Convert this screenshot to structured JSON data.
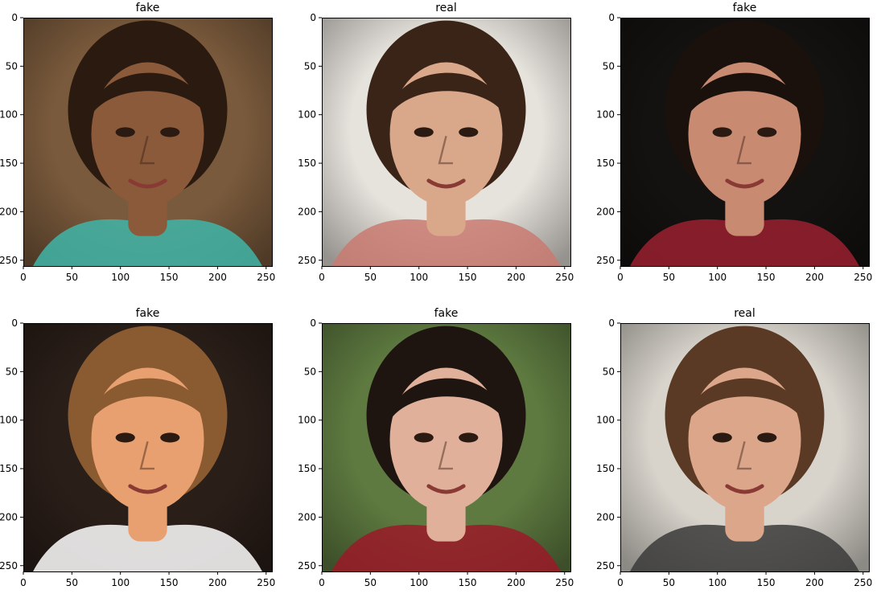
{
  "chart_data": [
    {
      "type": "image",
      "title": "fake",
      "xticks": [
        0,
        50,
        100,
        150,
        200,
        250
      ],
      "yticks": [
        0,
        50,
        100,
        150,
        200,
        250
      ],
      "xlim": [
        0,
        256
      ],
      "ylim": [
        256,
        0
      ],
      "grid": false,
      "colors": {
        "background": "#7a5a3c",
        "subject": "#8a5a3a",
        "accent": "#3fb5a8",
        "hair": "#2b1a10"
      }
    },
    {
      "type": "image",
      "title": "real",
      "xticks": [
        0,
        50,
        100,
        150,
        200,
        250
      ],
      "yticks": [
        0,
        50,
        100,
        150,
        200,
        250
      ],
      "xlim": [
        0,
        256
      ],
      "ylim": [
        256,
        0
      ],
      "grid": false,
      "colors": {
        "background": "#e6e2dc",
        "subject": "#d9a88a",
        "accent": "#c97a70",
        "hair": "#3a2418"
      }
    },
    {
      "type": "image",
      "title": "fake",
      "xticks": [
        0,
        50,
        100,
        150,
        200,
        250
      ],
      "yticks": [
        0,
        50,
        100,
        150,
        200,
        250
      ],
      "xlim": [
        0,
        256
      ],
      "ylim": [
        256,
        0
      ],
      "grid": false,
      "colors": {
        "background": "#141210",
        "subject": "#c98a72",
        "accent": "#9a2030",
        "hair": "#1a100c"
      }
    },
    {
      "type": "image",
      "title": "fake",
      "xticks": [
        0,
        50,
        100,
        150,
        200,
        250
      ],
      "yticks": [
        0,
        50,
        100,
        150,
        200,
        250
      ],
      "xlim": [
        0,
        256
      ],
      "ylim": [
        256,
        0
      ],
      "grid": false,
      "colors": {
        "background": "#2a1e18",
        "subject": "#e8a070",
        "accent": "#ffffff",
        "hair": "#8a5a30"
      }
    },
    {
      "type": "image",
      "title": "fake",
      "xticks": [
        0,
        50,
        100,
        150,
        200,
        250
      ],
      "yticks": [
        0,
        50,
        100,
        150,
        200,
        250
      ],
      "xlim": [
        0,
        256
      ],
      "ylim": [
        256,
        0
      ],
      "grid": false,
      "colors": {
        "background": "#5e7a40",
        "subject": "#e0b09a",
        "accent": "#9a1a28",
        "hair": "#1e1410"
      }
    },
    {
      "type": "image",
      "title": "real",
      "xticks": [
        0,
        50,
        100,
        150,
        200,
        250
      ],
      "yticks": [
        0,
        50,
        100,
        150,
        200,
        250
      ],
      "xlim": [
        0,
        256
      ],
      "ylim": [
        256,
        0
      ],
      "grid": false,
      "colors": {
        "background": "#d8d4cc",
        "subject": "#dca68a",
        "accent": "#3a3a3a",
        "hair": "#5a3a24"
      }
    }
  ]
}
